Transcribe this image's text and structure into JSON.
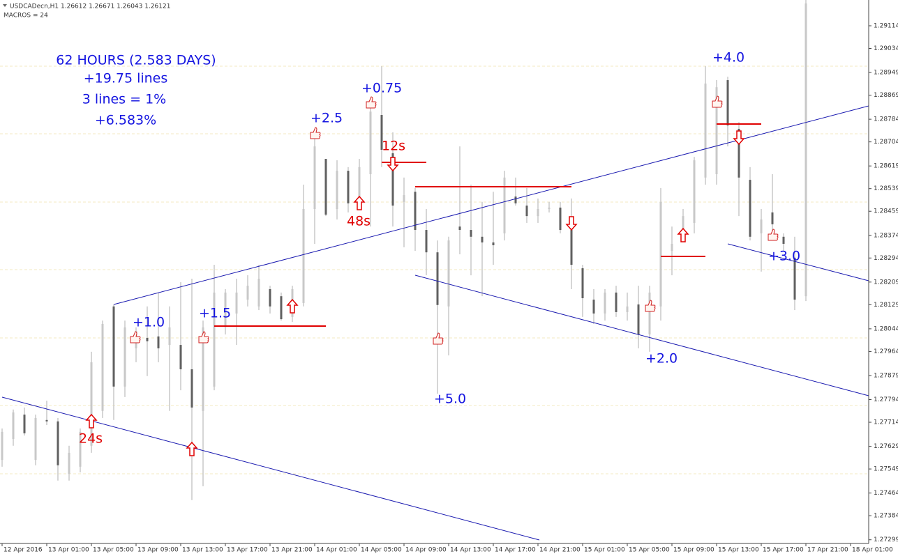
{
  "header": {
    "symbol": "USDCADecn,H1  1.26612 1.26671 1.26043 1.26121",
    "macros": "MACROS = 24"
  },
  "chart_data": {
    "type": "candlestick",
    "categories": [
      "12 Apr 2016",
      null,
      null,
      null,
      "13 Apr 01:00",
      null,
      null,
      null,
      "13 Apr 05:00",
      null,
      null,
      null,
      "13 Apr 09:00",
      null,
      null,
      null,
      "13 Apr 13:00",
      null,
      null,
      null,
      "13 Apr 17:00",
      null,
      null,
      null,
      "13 Apr 21:00",
      null,
      null,
      null,
      "14 Apr 01:00",
      null,
      null,
      null,
      "14 Apr 05:00",
      null,
      null,
      null,
      "14 Apr 09:00",
      null,
      null,
      null,
      "14 Apr 13:00",
      null,
      null,
      null,
      "14 Apr 17:00",
      null,
      null,
      null,
      "14 Apr 21:00",
      null,
      null,
      null,
      "15 Apr 01:00",
      null,
      null,
      null,
      "15 Apr 05:00",
      null,
      null,
      null,
      "15 Apr 09:00",
      null,
      null,
      null,
      "15 Apr 13:00",
      null,
      null,
      null,
      "15 Apr 17:00",
      null,
      null,
      null,
      "17 Apr 21:00",
      null,
      null,
      null,
      "18 Apr 01:00"
    ],
    "open": [
      1.27581,
      1.27655,
      1.27741,
      1.27581,
      1.27722,
      1.27717,
      1.27532,
      1.27557,
      1.27631,
      1.27754,
      1.28123,
      1.2784,
      1.27975,
      1.28012,
      1.28017,
      1.27987,
      1.27987,
      1.27901,
      1.27754,
      1.2784,
      1.28049,
      1.28098,
      1.28147,
      1.28123,
      1.28184,
      1.28159,
      1.28086,
      1.28135,
      1.28467,
      1.28644,
      1.28467,
      1.28602,
      1.28504,
      1.2859,
      1.28799,
      1.28664,
      1.28492,
      1.28528,
      1.28393,
      1.28314,
      1.28123,
      1.28405,
      1.28393,
      1.28369,
      1.28349,
      1.28381,
      1.28511,
      1.28479,
      1.28442,
      1.28467,
      1.28472,
      1.28393,
      1.28258,
      1.28147,
      1.28098,
      1.28172,
      1.28103,
      1.2813,
      1.28024,
      1.28123,
      1.28319,
      1.28393,
      1.28418,
      1.28578,
      1.2859,
      1.28922,
      1.2875,
      1.2857,
      1.28381,
      1.28455,
      1.28369,
      1.28295,
      1.28159,
      null,
      null,
      null,
      null
    ],
    "high": [
      1.27692,
      1.27759,
      1.27766,
      1.27741,
      1.2779,
      1.27729,
      1.27631,
      1.27692,
      1.27963,
      1.28073,
      1.2813,
      1.28073,
      1.28049,
      1.28123,
      1.28172,
      1.28123,
      1.28209,
      1.28221,
      1.28073,
      1.2827,
      1.28184,
      1.28221,
      1.28233,
      1.2827,
      1.28196,
      1.28172,
      1.28196,
      1.28553,
      1.28725,
      1.28639,
      1.28639,
      1.28615,
      1.28644,
      1.28836,
      1.28971,
      1.28738,
      1.28578,
      1.28541,
      1.28467,
      1.28356,
      1.28369,
      1.28688,
      1.28553,
      1.28492,
      1.28528,
      1.28602,
      1.28578,
      1.28541,
      1.28504,
      1.28492,
      1.28492,
      1.28504,
      1.2827,
      1.28184,
      1.28184,
      1.28196,
      1.28172,
      1.28196,
      1.28196,
      1.28541,
      1.28405,
      1.28467,
      1.28651,
      1.28971,
      1.28922,
      1.28934,
      1.28774,
      1.28615,
      1.28467,
      1.2859,
      1.28381,
      1.28369,
      1.29205,
      null,
      null,
      null,
      null
    ],
    "low": [
      1.27557,
      1.27631,
      1.27667,
      1.27562,
      1.27704,
      1.27508,
      1.27508,
      1.27537,
      1.27606,
      1.27729,
      1.27722,
      1.27803,
      1.27926,
      1.27877,
      1.27926,
      1.27754,
      1.27827,
      1.27439,
      1.27488,
      1.27827,
      1.28024,
      1.27987,
      1.28123,
      1.2811,
      1.28098,
      1.28073,
      1.28068,
      1.28123,
      1.28344,
      1.28442,
      1.2843,
      1.28455,
      1.28492,
      1.28405,
      1.28615,
      1.28405,
      1.28332,
      1.28319,
      1.28233,
      1.27815,
      1.2795,
      1.28307,
      1.28233,
      1.28159,
      1.2827,
      1.28356,
      1.28479,
      1.28418,
      1.28418,
      1.28455,
      1.28381,
      1.28184,
      1.28086,
      1.28061,
      1.28073,
      1.28086,
      1.28073,
      1.27975,
      1.27963,
      1.28073,
      1.28233,
      1.28381,
      1.28381,
      1.28553,
      1.28553,
      1.28688,
      1.28442,
      1.28356,
      1.28246,
      1.28356,
      1.28319,
      1.2811,
      1.28142,
      null,
      null,
      null,
      null
    ],
    "close": [
      1.2768,
      1.27749,
      1.27675,
      1.27729,
      1.27717,
      1.27562,
      1.27606,
      1.2768,
      1.27926,
      1.28061,
      1.2784,
      1.28049,
      1.28036,
      1.28,
      1.27975,
      1.28049,
      1.27901,
      1.27766,
      1.28049,
      1.28172,
      1.28172,
      1.28172,
      1.28196,
      1.28221,
      1.28123,
      1.28078,
      1.28184,
      1.28467,
      1.28688,
      1.28447,
      1.28602,
      1.28487,
      1.28615,
      1.28811,
      1.28676,
      1.28479,
      1.28516,
      1.28393,
      1.28314,
      1.28128,
      1.28356,
      1.28393,
      1.28369,
      1.28349,
      1.28339,
      1.28578,
      1.28487,
      1.28442,
      1.28467,
      1.28472,
      1.28393,
      1.2827,
      1.28152,
      1.28098,
      1.28172,
      1.28103,
      1.28123,
      1.28024,
      1.28172,
      1.28492,
      1.28344,
      1.28442,
      1.28639,
      1.2891,
      1.28897,
      1.28762,
      1.28578,
      1.28369,
      1.2843,
      1.28413,
      1.28344,
      1.28147,
      1.29193,
      null,
      null,
      null,
      null
    ],
    "up_color": "#c8c8c8",
    "down_color": "#606060",
    "ylim": [
      1.27286,
      1.29205
    ],
    "yticks": [
      1.29114,
      1.29034,
      1.28949,
      1.28869,
      1.28784,
      1.28704,
      1.28619,
      1.28539,
      1.28459,
      1.28374,
      1.28294,
      1.28209,
      1.28129,
      1.28044,
      1.27964,
      1.27879,
      1.27794,
      1.27714,
      1.27629,
      1.27549,
      1.27464,
      1.27384,
      1.27299
    ],
    "annotations": [
      {
        "text": "62 HOURS (2.583 DAYS)",
        "color": "#1515e0"
      },
      {
        "text": "+19.75 lines",
        "color": "#1515e0"
      },
      {
        "text": "3 lines = 1%",
        "color": "#1515e0"
      },
      {
        "text": "+6.583%",
        "color": "#1515e0"
      },
      {
        "text": "+1.0",
        "color": "#1515e0"
      },
      {
        "text": "+1.5",
        "color": "#1515e0"
      },
      {
        "text": "+2.5",
        "color": "#1515e0"
      },
      {
        "text": "+0.75",
        "color": "#1515e0"
      },
      {
        "text": "12s",
        "color": "#e00000"
      },
      {
        "text": "48s",
        "color": "#e00000"
      },
      {
        "text": "24s",
        "color": "#e00000"
      },
      {
        "text": "+5.0",
        "color": "#1515e0"
      },
      {
        "text": "+2.0",
        "color": "#1515e0"
      },
      {
        "text": "+4.0",
        "color": "#1515e0"
      },
      {
        "text": "+3.0",
        "color": "#1515e0"
      }
    ]
  }
}
